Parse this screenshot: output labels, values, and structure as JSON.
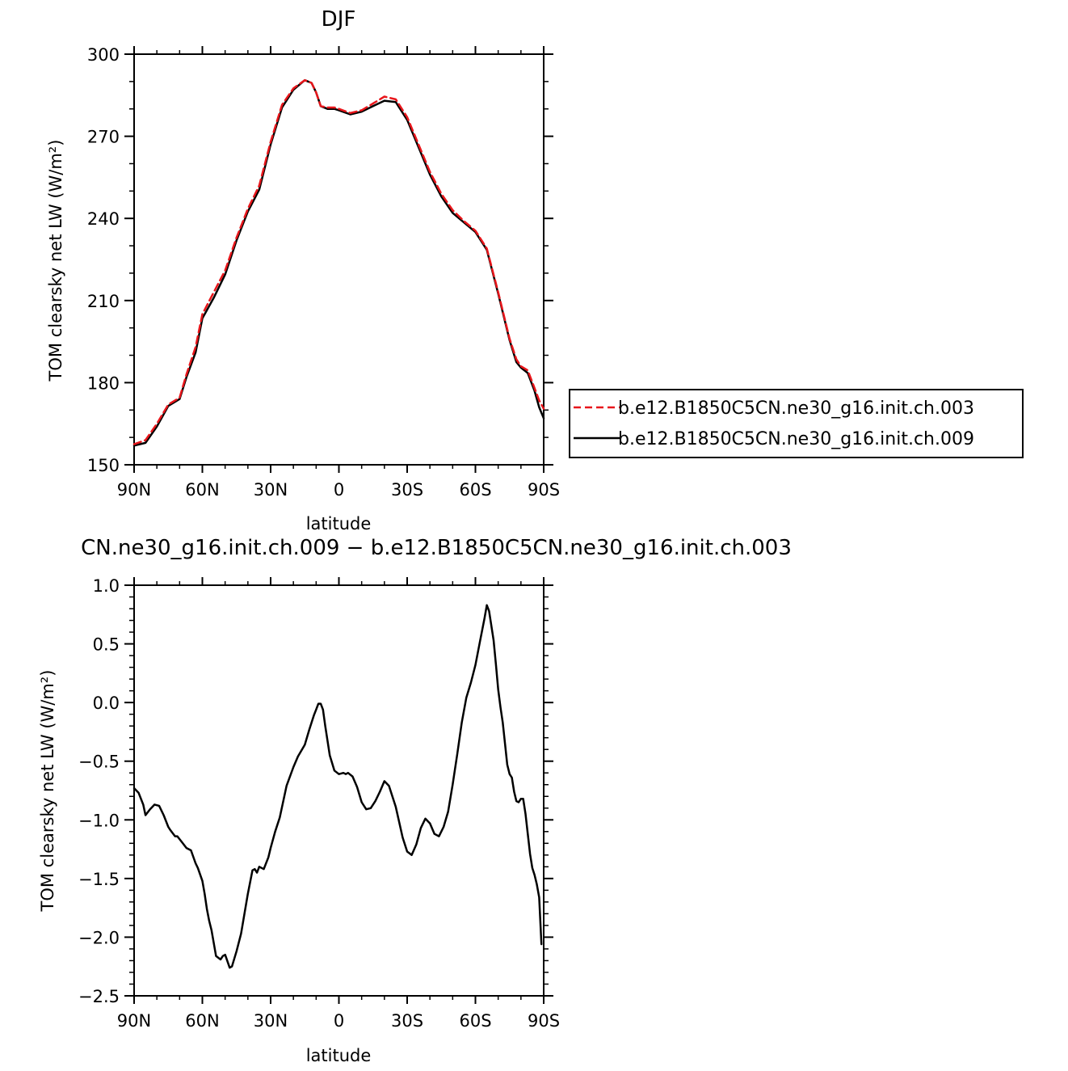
{
  "chart_data": [
    {
      "type": "line",
      "title": "DJF",
      "xlabel": "latitude",
      "ylabel": "TOM clearsky net LW (W/m²)",
      "xlim": [
        90,
        -90
      ],
      "ylim": [
        150,
        300
      ],
      "xticks": [
        90,
        60,
        30,
        0,
        -30,
        -60,
        -90
      ],
      "xtick_labels": [
        "90N",
        "60N",
        "30N",
        "0",
        "30S",
        "60S",
        "90S"
      ],
      "yticks": [
        150,
        180,
        210,
        240,
        270,
        300
      ],
      "ytick_labels": [
        "150",
        "180",
        "210",
        "240",
        "270",
        "300"
      ],
      "grid": false,
      "legend": "right-outside",
      "series": [
        {
          "name": "b.e12.B1850C5CN.ne30_g16.init.ch.003",
          "color": "#e8161b",
          "dash": "dashed",
          "x": [
            90,
            85,
            80,
            75,
            70,
            67,
            63,
            60,
            55,
            50,
            45,
            40,
            35,
            30,
            25,
            20,
            15,
            12,
            10,
            8,
            5,
            2,
            0,
            -5,
            -10,
            -15,
            -20,
            -25,
            -30,
            -35,
            -40,
            -45,
            -50,
            -55,
            -60,
            -65,
            -70,
            -75,
            -78,
            -80,
            -83,
            -86,
            -88,
            -90
          ],
          "y": [
            157.5,
            159,
            165,
            172,
            174.5,
            183,
            193,
            205,
            213,
            221,
            233,
            243.5,
            252,
            268,
            281.5,
            287.5,
            290.5,
            289.5,
            286,
            281,
            280.5,
            280.5,
            280,
            278.5,
            279.5,
            282,
            284.5,
            283.5,
            277,
            267,
            257,
            249,
            243,
            239,
            235.5,
            229,
            213,
            196,
            188.5,
            186,
            184.5,
            178,
            173.5,
            170.5
          ]
        },
        {
          "name": "b.e12.B1850C5CN.ne30_g16.init.ch.009",
          "color": "#000000",
          "dash": "solid",
          "x": [
            90,
            85,
            80,
            75,
            70,
            67,
            63,
            60,
            55,
            50,
            45,
            40,
            35,
            30,
            25,
            20,
            15,
            12,
            10,
            8,
            5,
            2,
            0,
            -5,
            -10,
            -15,
            -20,
            -25,
            -30,
            -35,
            -40,
            -45,
            -50,
            -55,
            -60,
            -65,
            -70,
            -75,
            -78,
            -80,
            -83,
            -86,
            -88,
            -90
          ],
          "y": [
            157,
            158,
            164,
            171.5,
            174,
            182,
            191,
            203.5,
            211,
            219.5,
            232,
            242.5,
            250.5,
            267,
            280.5,
            287,
            290.5,
            289.5,
            286,
            281,
            280,
            280,
            279.5,
            278,
            279,
            281,
            283,
            282.5,
            276,
            266,
            256,
            248,
            242,
            238.5,
            235,
            228.5,
            212.5,
            195.5,
            187.5,
            185.5,
            183.5,
            177,
            171,
            167
          ]
        }
      ]
    },
    {
      "type": "line",
      "title": "CN.ne30_g16.init.ch.009 − b.e12.B1850C5CN.ne30_g16.init.ch.003",
      "xlabel": "latitude",
      "ylabel": "TOM clearsky net LW (W/m²)",
      "xlim": [
        90,
        -90
      ],
      "ylim": [
        -2.5,
        1.0
      ],
      "xticks": [
        90,
        60,
        30,
        0,
        -30,
        -60,
        -90
      ],
      "xtick_labels": [
        "90N",
        "60N",
        "30N",
        "0",
        "30S",
        "60S",
        "90S"
      ],
      "yticks": [
        -2.5,
        -2.0,
        -1.5,
        -1.0,
        -0.5,
        0.0,
        0.5,
        1.0
      ],
      "ytick_labels": [
        "−2.5",
        "−2.0",
        "−1.5",
        "−1.0",
        "−0.5",
        "0.0",
        "0.5",
        "1.0"
      ],
      "grid": false,
      "series": [
        {
          "color": "#000000",
          "dash": "solid",
          "x": [
            90,
            88,
            86,
            85,
            83,
            81,
            79,
            77,
            75,
            74,
            72,
            71,
            69,
            67,
            65,
            63,
            62,
            60,
            59,
            58,
            57,
            56,
            55,
            54,
            52,
            51,
            50,
            48,
            47,
            45,
            43,
            40,
            38,
            37,
            36,
            35,
            33,
            31,
            30,
            28,
            26,
            23,
            20,
            18,
            15,
            13,
            11,
            10,
            9,
            8,
            7,
            6,
            4,
            2,
            0,
            -2,
            -3,
            -4,
            -6,
            -8,
            -10,
            -12,
            -14,
            -16,
            -18,
            -20,
            -22,
            -25,
            -28,
            -30,
            -32,
            -34,
            -36,
            -38,
            -40,
            -42,
            -44,
            -46,
            -48,
            -50,
            -52,
            -54,
            -56,
            -58,
            -60,
            -62,
            -64,
            -65,
            -66,
            -68,
            -69,
            -70,
            -71,
            -72,
            -73,
            -74,
            -75,
            -76,
            -77,
            -78,
            -79,
            -80,
            -81,
            -82,
            -83,
            -84,
            -85,
            -86,
            -87,
            -88,
            -89
          ],
          "y": [
            -0.73,
            -0.77,
            -0.87,
            -0.96,
            -0.91,
            -0.87,
            -0.88,
            -0.96,
            -1.06,
            -1.09,
            -1.14,
            -1.14,
            -1.19,
            -1.24,
            -1.26,
            -1.37,
            -1.41,
            -1.52,
            -1.63,
            -1.76,
            -1.86,
            -1.94,
            -2.05,
            -2.16,
            -2.19,
            -2.16,
            -2.15,
            -2.26,
            -2.25,
            -2.12,
            -1.97,
            -1.63,
            -1.43,
            -1.42,
            -1.45,
            -1.4,
            -1.42,
            -1.32,
            -1.24,
            -1.1,
            -0.98,
            -0.71,
            -0.55,
            -0.46,
            -0.36,
            -0.23,
            -0.11,
            -0.06,
            -0.01,
            -0.01,
            -0.06,
            -0.2,
            -0.45,
            -0.58,
            -0.61,
            -0.6,
            -0.61,
            -0.6,
            -0.63,
            -0.72,
            -0.85,
            -0.91,
            -0.9,
            -0.84,
            -0.76,
            -0.67,
            -0.71,
            -0.89,
            -1.15,
            -1.27,
            -1.3,
            -1.21,
            -1.07,
            -0.99,
            -1.03,
            -1.12,
            -1.14,
            -1.06,
            -0.93,
            -0.7,
            -0.44,
            -0.17,
            0.04,
            0.17,
            0.32,
            0.52,
            0.72,
            0.83,
            0.78,
            0.53,
            0.33,
            0.11,
            -0.04,
            -0.17,
            -0.35,
            -0.53,
            -0.61,
            -0.64,
            -0.76,
            -0.84,
            -0.85,
            -0.82,
            -0.82,
            -0.95,
            -1.12,
            -1.29,
            -1.41,
            -1.47,
            -1.55,
            -1.66,
            -2.06
          ]
        }
      ]
    }
  ]
}
